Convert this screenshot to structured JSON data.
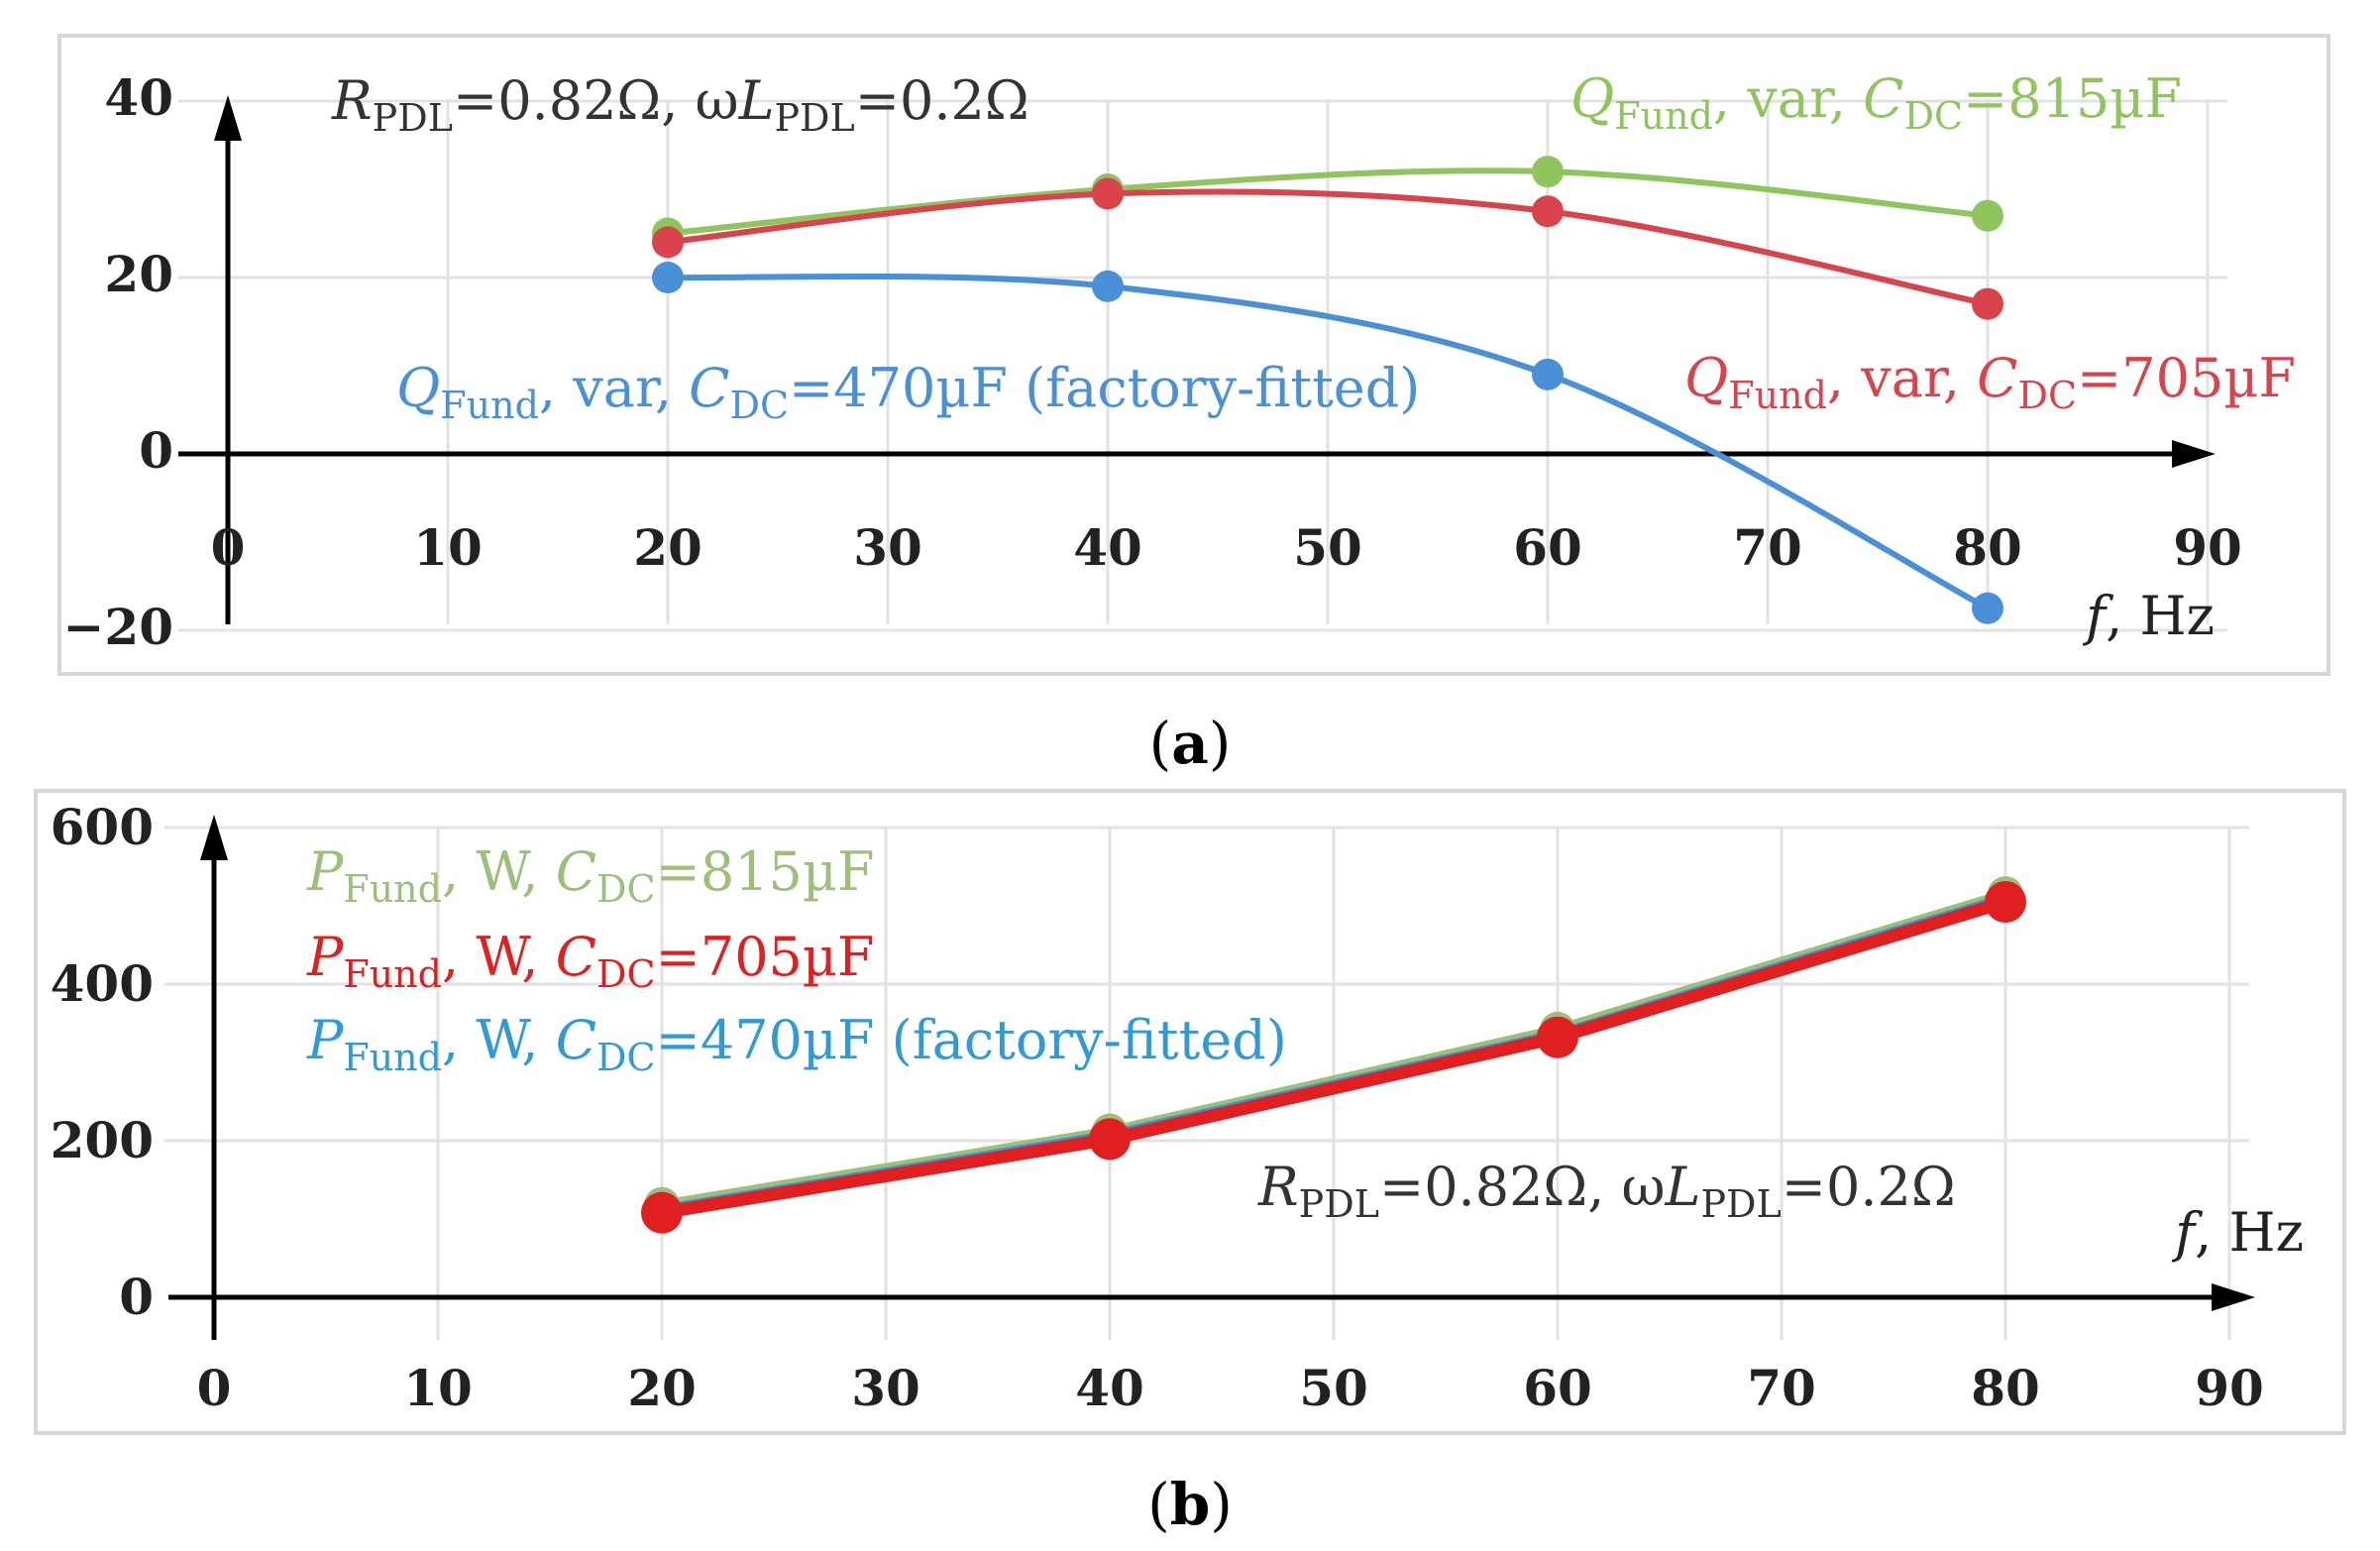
{
  "chart_data": [
    {
      "type": "line",
      "panel_label": "a",
      "xlabel": {
        "symbol": "f",
        "unit": ", Hz"
      },
      "xticks": [
        0,
        10,
        20,
        30,
        40,
        50,
        60,
        70,
        80,
        90
      ],
      "yticks": [
        "40",
        "20",
        "0",
        "−20"
      ],
      "xlim": [
        0,
        90
      ],
      "ylim": [
        -20,
        40
      ],
      "params": {
        "r": "R",
        "r_sub": "PDL",
        "r_val": "=0.82Ω, ω",
        "l": "L",
        "l_sub": "PDL",
        "l_val": "=0.2Ω"
      },
      "series": [
        {
          "name": "Q_Fund, var, C_DC=815µF",
          "color": "#8fc45e",
          "label": {
            "sym": "Q",
            "sub1": "Fund",
            "mid": ", var, ",
            "sym2": "C",
            "sub2": "DC",
            "tail": "=815µF"
          },
          "x": [
            20,
            40,
            60,
            80
          ],
          "y": [
            25,
            30,
            32,
            27
          ]
        },
        {
          "name": "Q_Fund, var, C_DC=705µF",
          "color": "#d9434b",
          "label": {
            "sym": "Q",
            "sub1": "Fund",
            "mid": ", var, ",
            "sym2": "C",
            "sub2": "DC",
            "tail": "=705µF"
          },
          "x": [
            20,
            40,
            60,
            80
          ],
          "y": [
            24,
            29.5,
            27.5,
            17
          ]
        },
        {
          "name": "Q_Fund, var, C_DC=470µF (factory-fitted)",
          "color": "#4a90d9",
          "label": {
            "sym": "Q",
            "sub1": "Fund",
            "mid": ", var, ",
            "sym2": "C",
            "sub2": "DC",
            "tail": "=470µF (factory-fitted)"
          },
          "x": [
            20,
            40,
            60,
            80
          ],
          "y": [
            20,
            19,
            9,
            -17.5
          ]
        }
      ]
    },
    {
      "type": "line",
      "panel_label": "b",
      "xlabel": {
        "symbol": "f",
        "unit": ", Hz"
      },
      "xticks": [
        0,
        10,
        20,
        30,
        40,
        50,
        60,
        70,
        80,
        90
      ],
      "yticks": [
        "600",
        "400",
        "200",
        "0"
      ],
      "xlim": [
        0,
        90
      ],
      "ylim": [
        0,
        600
      ],
      "params": {
        "r": "R",
        "r_sub": "PDL",
        "r_val": "=0.82Ω, ω",
        "l": "L",
        "l_sub": "PDL",
        "l_val": "=0.2Ω"
      },
      "series": [
        {
          "name": "P_Fund, W, C_DC=815µF",
          "color": "#9cbf7a",
          "label": {
            "sym": "P",
            "sub1": "Fund",
            "mid": ", W, ",
            "sym2": "C",
            "sub2": "DC",
            "tail": "=815µF"
          },
          "x": [
            20,
            40,
            60,
            80
          ],
          "y": [
            118,
            212,
            342,
            515
          ]
        },
        {
          "name": "P_Fund, W, C_DC=470µF (factory-fitted)",
          "color": "#2f9ad6",
          "label": {
            "sym": "P",
            "sub1": "Fund",
            "mid": ", W, ",
            "sym2": "C",
            "sub2": "DC",
            "tail": "=470µF (factory-fitted)"
          },
          "x": [
            20,
            40,
            60,
            80
          ],
          "y": [
            112,
            207,
            336,
            510
          ]
        },
        {
          "name": "P_Fund, W, C_DC=705µF",
          "color": "#e02020",
          "label": {
            "sym": "P",
            "sub1": "Fund",
            "mid": ", W, ",
            "sym2": "C",
            "sub2": "DC",
            "tail": "=705µF"
          },
          "x": [
            20,
            40,
            60,
            80
          ],
          "y": [
            108,
            202,
            332,
            505
          ]
        }
      ]
    }
  ]
}
